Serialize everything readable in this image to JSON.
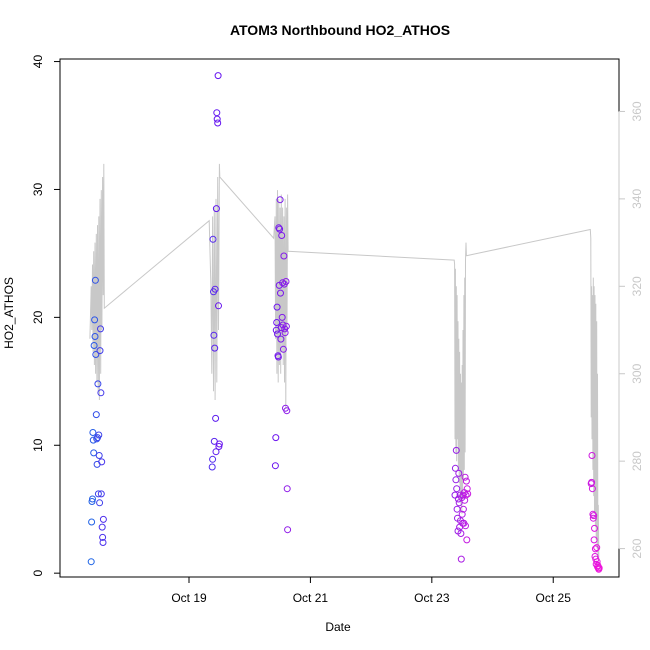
{
  "chart_data": {
    "type": "scatter",
    "title": "ATOM3 Northbound HO2_ATHOS",
    "xlabel": "Date",
    "ylabel": "HO2_ATHOS",
    "x_range": [
      "2016-10-16T21:00",
      "2016-10-26T02:00"
    ],
    "x_ticks": [
      "Oct 19",
      "Oct 21",
      "Oct 23",
      "Oct 25"
    ],
    "ylim": [
      -0.3,
      40.2
    ],
    "y_ticks": [
      0,
      10,
      20,
      30,
      40
    ],
    "y2lim": [
      253.5,
      372
    ],
    "y2_ticks": [
      260,
      280,
      300,
      320,
      340,
      360
    ],
    "grid": false,
    "legend": "none",
    "colors": {
      "gradient_start": "#1e64e6",
      "gradient_mid": "#6414f0",
      "gradient_mid2": "#9b1ee6",
      "gradient_end": "#f014dc",
      "secondary_line": "#c8c8c8",
      "secondary_axis": "#c8c8c8"
    },
    "series": [
      {
        "type": "scatter",
        "axis": "left",
        "points": [
          [
            "2016-10-17T09:20",
            0.9
          ],
          [
            "2016-10-17T09:30",
            4.0
          ],
          [
            "2016-10-17T09:40",
            5.6
          ],
          [
            "2016-10-17T09:50",
            5.8
          ],
          [
            "2016-10-17T10:00",
            11.0
          ],
          [
            "2016-10-17T10:10",
            10.4
          ],
          [
            "2016-10-17T10:20",
            9.4
          ],
          [
            "2016-10-17T10:30",
            17.8
          ],
          [
            "2016-10-17T10:40",
            19.8
          ],
          [
            "2016-10-17T10:50",
            18.5
          ],
          [
            "2016-10-17T11:00",
            22.9
          ],
          [
            "2016-10-17T11:10",
            17.1
          ],
          [
            "2016-10-17T11:20",
            12.4
          ],
          [
            "2016-10-17T11:30",
            10.5
          ],
          [
            "2016-10-17T11:40",
            8.5
          ],
          [
            "2016-10-17T11:50",
            10.6
          ],
          [
            "2016-10-17T12:00",
            14.8
          ],
          [
            "2016-10-17T12:10",
            6.2
          ],
          [
            "2016-10-17T12:20",
            10.8
          ],
          [
            "2016-10-17T12:30",
            9.2
          ],
          [
            "2016-10-17T12:40",
            5.5
          ],
          [
            "2016-10-17T12:50",
            17.4
          ],
          [
            "2016-10-17T13:00",
            19.1
          ],
          [
            "2016-10-17T13:10",
            14.1
          ],
          [
            "2016-10-17T13:20",
            6.2
          ],
          [
            "2016-10-17T13:30",
            8.7
          ],
          [
            "2016-10-17T13:40",
            3.6
          ],
          [
            "2016-10-17T13:50",
            2.8
          ],
          [
            "2016-10-17T14:00",
            2.4
          ],
          [
            "2016-10-17T14:10",
            4.2
          ],
          [
            "2016-10-19T09:10",
            8.3
          ],
          [
            "2016-10-19T09:20",
            8.9
          ],
          [
            "2016-10-19T09:30",
            26.1
          ],
          [
            "2016-10-19T09:40",
            22.0
          ],
          [
            "2016-10-19T09:50",
            18.6
          ],
          [
            "2016-10-19T10:00",
            10.3
          ],
          [
            "2016-10-19T10:10",
            17.6
          ],
          [
            "2016-10-19T10:20",
            22.2
          ],
          [
            "2016-10-19T10:30",
            12.1
          ],
          [
            "2016-10-19T10:40",
            9.5
          ],
          [
            "2016-10-19T10:50",
            28.5
          ],
          [
            "2016-10-19T11:00",
            36.0
          ],
          [
            "2016-10-19T11:10",
            35.5
          ],
          [
            "2016-10-19T11:20",
            35.2
          ],
          [
            "2016-10-19T11:30",
            38.9
          ],
          [
            "2016-10-19T11:40",
            20.9
          ],
          [
            "2016-10-19T11:50",
            9.9
          ],
          [
            "2016-10-19T12:00",
            10.1
          ],
          [
            "2016-10-20T10:10",
            8.4
          ],
          [
            "2016-10-20T10:20",
            10.6
          ],
          [
            "2016-10-20T10:30",
            19.0
          ],
          [
            "2016-10-20T10:40",
            19.6
          ],
          [
            "2016-10-20T10:50",
            20.8
          ],
          [
            "2016-10-20T11:00",
            18.7
          ],
          [
            "2016-10-20T11:10",
            17.0
          ],
          [
            "2016-10-20T11:20",
            16.9
          ],
          [
            "2016-10-20T11:30",
            27.0
          ],
          [
            "2016-10-20T11:40",
            22.5
          ],
          [
            "2016-10-20T11:50",
            26.9
          ],
          [
            "2016-10-20T12:00",
            29.2
          ],
          [
            "2016-10-20T12:10",
            21.9
          ],
          [
            "2016-10-20T12:20",
            18.3
          ],
          [
            "2016-10-20T12:30",
            19.2
          ],
          [
            "2016-10-20T12:40",
            26.4
          ],
          [
            "2016-10-20T12:50",
            20.0
          ],
          [
            "2016-10-20T13:00",
            22.7
          ],
          [
            "2016-10-20T13:10",
            19.4
          ],
          [
            "2016-10-20T13:20",
            17.5
          ],
          [
            "2016-10-20T13:30",
            24.8
          ],
          [
            "2016-10-20T13:40",
            22.6
          ],
          [
            "2016-10-20T13:50",
            19.1
          ],
          [
            "2016-10-20T14:00",
            18.8
          ],
          [
            "2016-10-20T14:10",
            12.9
          ],
          [
            "2016-10-20T14:20",
            22.8
          ],
          [
            "2016-10-20T14:30",
            19.3
          ],
          [
            "2016-10-20T14:40",
            12.7
          ],
          [
            "2016-10-20T14:50",
            6.6
          ],
          [
            "2016-10-20T15:00",
            3.4
          ],
          [
            "2016-10-23T09:10",
            6.1
          ],
          [
            "2016-10-23T09:20",
            8.2
          ],
          [
            "2016-10-23T09:30",
            7.3
          ],
          [
            "2016-10-23T09:40",
            9.6
          ],
          [
            "2016-10-23T09:50",
            6.6
          ],
          [
            "2016-10-23T10:00",
            5.0
          ],
          [
            "2016-10-23T10:10",
            4.3
          ],
          [
            "2016-10-23T10:20",
            3.3
          ],
          [
            "2016-10-23T10:30",
            5.8
          ],
          [
            "2016-10-23T10:40",
            7.8
          ],
          [
            "2016-10-23T10:50",
            5.5
          ],
          [
            "2016-10-23T11:00",
            3.6
          ],
          [
            "2016-10-23T11:10",
            6.1
          ],
          [
            "2016-10-23T11:20",
            4.1
          ],
          [
            "2016-10-23T11:30",
            3.1
          ],
          [
            "2016-10-23T11:40",
            1.1
          ],
          [
            "2016-10-23T11:50",
            5.9
          ],
          [
            "2016-10-23T12:00",
            4.6
          ],
          [
            "2016-10-23T12:10",
            3.9
          ],
          [
            "2016-10-23T12:20",
            6.1
          ],
          [
            "2016-10-23T12:30",
            5.0
          ],
          [
            "2016-10-23T12:40",
            3.9
          ],
          [
            "2016-10-23T12:50",
            6.3
          ],
          [
            "2016-10-23T13:00",
            5.7
          ],
          [
            "2016-10-23T13:10",
            7.5
          ],
          [
            "2016-10-23T13:20",
            3.7
          ],
          [
            "2016-10-23T13:30",
            6.1
          ],
          [
            "2016-10-23T13:40",
            7.2
          ],
          [
            "2016-10-23T13:50",
            2.6
          ],
          [
            "2016-10-23T14:00",
            6.6
          ],
          [
            "2016-10-23T14:10",
            6.2
          ],
          [
            "2016-10-25T15:00",
            7.0
          ],
          [
            "2016-10-25T15:10",
            7.1
          ],
          [
            "2016-10-25T15:20",
            9.2
          ],
          [
            "2016-10-25T15:30",
            6.6
          ],
          [
            "2016-10-25T15:40",
            4.6
          ],
          [
            "2016-10-25T15:50",
            4.3
          ],
          [
            "2016-10-25T16:00",
            4.5
          ],
          [
            "2016-10-25T16:10",
            2.6
          ],
          [
            "2016-10-25T16:20",
            3.5
          ],
          [
            "2016-10-25T16:30",
            1.3
          ],
          [
            "2016-10-25T16:40",
            1.9
          ],
          [
            "2016-10-25T16:50",
            1.1
          ],
          [
            "2016-10-25T17:00",
            0.7
          ],
          [
            "2016-10-25T17:10",
            2.0
          ],
          [
            "2016-10-25T17:20",
            0.9
          ],
          [
            "2016-10-25T17:30",
            0.5
          ],
          [
            "2016-10-25T17:40",
            0.6
          ],
          [
            "2016-10-25T17:50",
            0.4
          ],
          [
            "2016-10-25T18:00",
            0.3
          ],
          [
            "2016-10-25T18:10",
            0.4
          ]
        ]
      },
      {
        "type": "line",
        "axis": "right",
        "points": [
          [
            "2016-10-17T08:50",
            308
          ],
          [
            "2016-10-17T09:20",
            320
          ],
          [
            "2016-10-17T09:35",
            310
          ],
          [
            "2016-10-17T09:50",
            325
          ],
          [
            "2016-10-17T10:05",
            305
          ],
          [
            "2016-10-17T10:20",
            328
          ],
          [
            "2016-10-17T10:35",
            302
          ],
          [
            "2016-10-17T10:50",
            330
          ],
          [
            "2016-10-17T11:05",
            300
          ],
          [
            "2016-10-17T11:20",
            332
          ],
          [
            "2016-10-17T11:35",
            298
          ],
          [
            "2016-10-17T11:50",
            334
          ],
          [
            "2016-10-17T12:05",
            296
          ],
          [
            "2016-10-17T12:20",
            336
          ],
          [
            "2016-10-17T12:35",
            294
          ],
          [
            "2016-10-17T12:50",
            340
          ],
          [
            "2016-10-17T13:05",
            300
          ],
          [
            "2016-10-17T13:20",
            342
          ],
          [
            "2016-10-17T13:35",
            310
          ],
          [
            "2016-10-17T13:50",
            345
          ],
          [
            "2016-10-17T14:05",
            318
          ],
          [
            "2016-10-17T14:20",
            348
          ],
          [
            "2016-10-17T14:30",
            315
          ],
          [
            "2016-10-19T08:00",
            335
          ],
          [
            "2016-10-19T08:40",
            320
          ],
          [
            "2016-10-19T09:00",
            300
          ],
          [
            "2016-10-19T09:20",
            336
          ],
          [
            "2016-10-19T09:40",
            296
          ],
          [
            "2016-10-19T10:00",
            338
          ],
          [
            "2016-10-19T10:20",
            294
          ],
          [
            "2016-10-19T10:40",
            340
          ],
          [
            "2016-10-19T11:00",
            298
          ],
          [
            "2016-10-19T11:20",
            345
          ],
          [
            "2016-10-19T11:40",
            310
          ],
          [
            "2016-10-19T12:00",
            348
          ],
          [
            "2016-10-19T12:10",
            345
          ],
          [
            "2016-10-20T09:30",
            331
          ],
          [
            "2016-10-20T10:00",
            336
          ],
          [
            "2016-10-20T10:15",
            308
          ],
          [
            "2016-10-20T10:30",
            340
          ],
          [
            "2016-10-20T10:45",
            300
          ],
          [
            "2016-10-20T11:00",
            342
          ],
          [
            "2016-10-20T11:15",
            298
          ],
          [
            "2016-10-20T11:30",
            340
          ],
          [
            "2016-10-20T11:45",
            302
          ],
          [
            "2016-10-20T12:00",
            338
          ],
          [
            "2016-10-20T12:15",
            300
          ],
          [
            "2016-10-20T12:30",
            341
          ],
          [
            "2016-10-20T12:45",
            305
          ],
          [
            "2016-10-20T13:00",
            338
          ],
          [
            "2016-10-20T13:15",
            302
          ],
          [
            "2016-10-20T13:30",
            336
          ],
          [
            "2016-10-20T13:45",
            298
          ],
          [
            "2016-10-20T14:00",
            340
          ],
          [
            "2016-10-20T14:15",
            292
          ],
          [
            "2016-10-20T14:30",
            338
          ],
          [
            "2016-10-20T14:45",
            310
          ],
          [
            "2016-10-20T15:00",
            341
          ],
          [
            "2016-10-20T15:10",
            328
          ],
          [
            "2016-10-23T08:50",
            326
          ],
          [
            "2016-10-23T09:00",
            325
          ],
          [
            "2016-10-23T09:10",
            285
          ],
          [
            "2016-10-23T09:20",
            324
          ],
          [
            "2016-10-23T09:30",
            282
          ],
          [
            "2016-10-23T09:40",
            320
          ],
          [
            "2016-10-23T09:50",
            280
          ],
          [
            "2016-10-23T10:00",
            318
          ],
          [
            "2016-10-23T10:10",
            285
          ],
          [
            "2016-10-23T10:20",
            312
          ],
          [
            "2016-10-23T10:30",
            278
          ],
          [
            "2016-10-23T10:40",
            308
          ],
          [
            "2016-10-23T10:50",
            275
          ],
          [
            "2016-10-23T11:00",
            305
          ],
          [
            "2016-10-23T11:10",
            273
          ],
          [
            "2016-10-23T11:20",
            300
          ],
          [
            "2016-10-23T11:30",
            270
          ],
          [
            "2016-10-23T11:40",
            298
          ],
          [
            "2016-10-23T11:50",
            268
          ],
          [
            "2016-10-23T12:00",
            302
          ],
          [
            "2016-10-23T12:10",
            272
          ],
          [
            "2016-10-23T12:20",
            310
          ],
          [
            "2016-10-23T12:30",
            275
          ],
          [
            "2016-10-23T12:40",
            318
          ],
          [
            "2016-10-23T12:50",
            278
          ],
          [
            "2016-10-23T13:00",
            322
          ],
          [
            "2016-10-23T13:10",
            282
          ],
          [
            "2016-10-23T13:20",
            326
          ],
          [
            "2016-10-23T13:30",
            330
          ],
          [
            "2016-10-23T13:40",
            327
          ],
          [
            "2016-10-25T14:40",
            333
          ],
          [
            "2016-10-25T14:50",
            331
          ],
          [
            "2016-10-25T15:00",
            290
          ],
          [
            "2016-10-25T15:10",
            320
          ],
          [
            "2016-10-25T15:20",
            285
          ],
          [
            "2016-10-25T15:30",
            318
          ],
          [
            "2016-10-25T15:40",
            278
          ],
          [
            "2016-10-25T15:50",
            322
          ],
          [
            "2016-10-25T16:00",
            272
          ],
          [
            "2016-10-25T16:10",
            320
          ],
          [
            "2016-10-25T16:20",
            268
          ],
          [
            "2016-10-25T16:30",
            318
          ],
          [
            "2016-10-25T16:40",
            265
          ],
          [
            "2016-10-25T16:50",
            316
          ],
          [
            "2016-10-25T17:00",
            262
          ],
          [
            "2016-10-25T17:10",
            312
          ],
          [
            "2016-10-25T17:20",
            260
          ],
          [
            "2016-10-25T17:30",
            300
          ],
          [
            "2016-10-25T17:40",
            258
          ],
          [
            "2016-10-25T17:50",
            270
          ],
          [
            "2016-10-25T18:00",
            258
          ]
        ]
      }
    ]
  }
}
